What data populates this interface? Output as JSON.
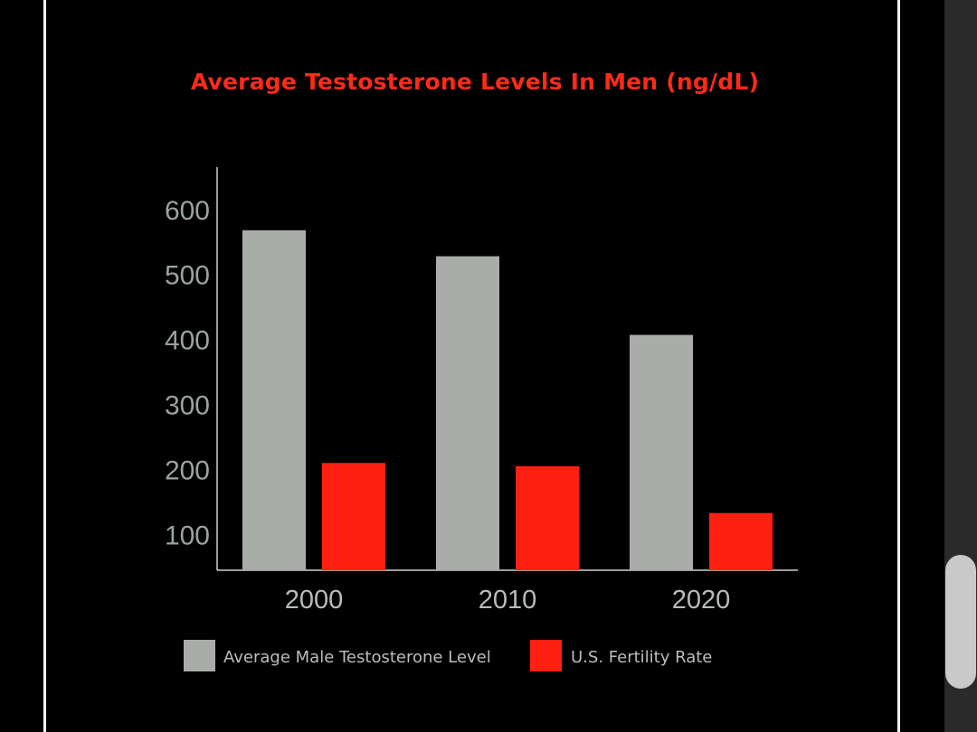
{
  "chart_data": {
    "type": "bar",
    "title": "Average Testosterone Levels In Men (ng/dL)",
    "categories": [
      "2000",
      "2010",
      "2020"
    ],
    "series": [
      {
        "name": "Average Male Testosterone Level",
        "values": [
          568,
          528,
          407
        ],
        "color": "#a9aca9"
      },
      {
        "name": "U.S. Fertility Rate",
        "values": [
          210,
          205,
          133
        ],
        "color": "#ff2012"
      }
    ],
    "yticks": [
      "100",
      "200",
      "300",
      "400",
      "500",
      "600"
    ],
    "ylim": [
      45,
      665
    ],
    "xlabel": "",
    "ylabel": "",
    "grid": false,
    "legend_position": "bottom"
  },
  "colors": {
    "background": "#000000",
    "title": "#ff2a1a",
    "axis": "#cfcfcf"
  }
}
